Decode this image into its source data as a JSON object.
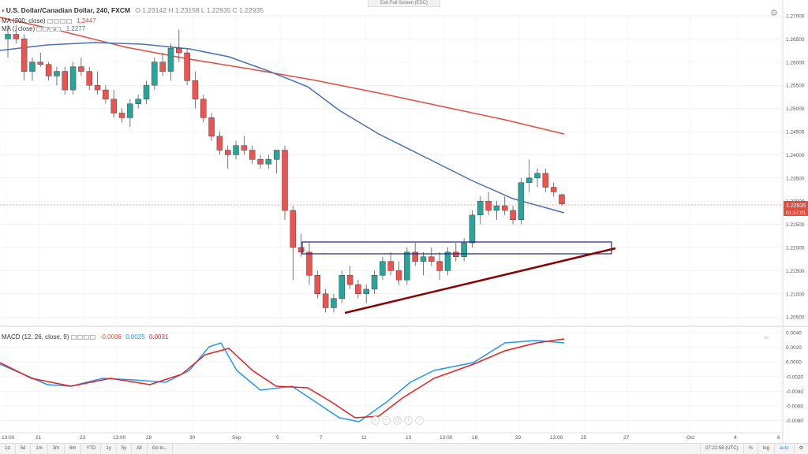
{
  "header": {
    "symbol": "U.S. Dollar/Canadian Dollar, 240, FXCM",
    "ohlc": "O 1.23142  H 1.23158  L 1.22935  C 1.22935",
    "exit_fullscreen": "Exit Full Screen (ESC)"
  },
  "indicators": {
    "ma200_label": "MA (200, close)",
    "ma200_value": "1.2447",
    "ma200_color": "#e74b3c",
    "ma_label": "MA (, close)",
    "ma_value": "1.2277",
    "ma_color": "#4a6fb5",
    "macd_label": "MACD (12, 26, close, 9)",
    "macd_hist": "-0.0006",
    "macd_line": "0.0025",
    "macd_signal": "0.0031",
    "macd_colors": {
      "hist": "#e74b3c",
      "line": "#2196f3",
      "signal": "#e91e1e"
    }
  },
  "price_axis": {
    "ticks": [
      "1.27000",
      "1.26500",
      "1.26000",
      "1.25500",
      "1.25000",
      "1.24500",
      "1.24000",
      "1.23500",
      "1.23000",
      "1.22500",
      "1.22000",
      "1.21500",
      "1.21000",
      "1.20500"
    ],
    "last_price": "1.22935",
    "countdown": "01:37:01"
  },
  "macd_axis": {
    "ticks": [
      "0.0040",
      "0.0020",
      "0.0000",
      "-0.0020",
      "-0.0040",
      "-0.0060",
      "-0.0080"
    ]
  },
  "time_axis": {
    "labels": [
      "13:00",
      "21",
      "23",
      "13:00",
      "28",
      "30",
      "Sep",
      "5",
      "7",
      "11",
      "13",
      "13:00",
      "18",
      "20",
      "13:00",
      "25",
      "27",
      "Oct",
      "4",
      "6"
    ]
  },
  "bottom_bar": {
    "timeframes": [
      "1d",
      "5d",
      "1m",
      "3m",
      "6m",
      "YTD",
      "1y",
      "5y",
      "All",
      "Go to..."
    ],
    "clock": "07:22:58 (UTC)",
    "percent": "%",
    "log": "log",
    "auto": "auto"
  },
  "chart_data": {
    "type": "candlestick",
    "ylim": [
      1.2035,
      1.2735
    ],
    "annotations": [
      "ascending support trendline",
      "horizontal resistance box 1.2190-1.2215"
    ],
    "candles": [
      [
        1.265,
        1.268,
        1.261,
        1.266
      ],
      [
        1.266,
        1.268,
        1.264,
        1.265
      ],
      [
        1.265,
        1.266,
        1.256,
        1.258
      ],
      [
        1.258,
        1.261,
        1.256,
        1.26
      ],
      [
        1.26,
        1.262,
        1.259,
        1.2595
      ],
      [
        1.2595,
        1.26,
        1.256,
        1.257
      ],
      [
        1.257,
        1.259,
        1.255,
        1.258
      ],
      [
        1.258,
        1.259,
        1.253,
        1.254
      ],
      [
        1.254,
        1.26,
        1.253,
        1.259
      ],
      [
        1.259,
        1.261,
        1.257,
        1.258
      ],
      [
        1.258,
        1.259,
        1.254,
        1.255
      ],
      [
        1.255,
        1.258,
        1.253,
        1.254
      ],
      [
        1.254,
        1.255,
        1.251,
        1.252
      ],
      [
        1.252,
        1.254,
        1.248,
        1.249
      ],
      [
        1.249,
        1.25,
        1.247,
        1.248
      ],
      [
        1.248,
        1.252,
        1.246,
        1.251
      ],
      [
        1.251,
        1.253,
        1.25,
        1.252
      ],
      [
        1.252,
        1.256,
        1.251,
        1.255
      ],
      [
        1.255,
        1.261,
        1.254,
        1.26
      ],
      [
        1.26,
        1.262,
        1.257,
        1.258
      ],
      [
        1.258,
        1.264,
        1.256,
        1.263
      ],
      [
        1.263,
        1.267,
        1.26,
        1.262
      ],
      [
        1.262,
        1.263,
        1.255,
        1.256
      ],
      [
        1.256,
        1.258,
        1.25,
        1.252
      ],
      [
        1.252,
        1.253,
        1.247,
        1.248
      ],
      [
        1.248,
        1.249,
        1.243,
        1.244
      ],
      [
        1.244,
        1.245,
        1.24,
        1.241
      ],
      [
        1.241,
        1.242,
        1.237,
        1.24
      ],
      [
        1.24,
        1.243,
        1.239,
        1.242
      ],
      [
        1.242,
        1.244,
        1.24,
        1.241
      ],
      [
        1.241,
        1.242,
        1.238,
        1.239
      ],
      [
        1.239,
        1.24,
        1.237,
        1.238
      ],
      [
        1.238,
        1.24,
        1.237,
        1.239
      ],
      [
        1.239,
        1.241,
        1.236,
        1.241
      ],
      [
        1.241,
        1.242,
        1.226,
        1.228
      ],
      [
        1.228,
        1.229,
        1.213,
        1.22
      ],
      [
        1.22,
        1.223,
        1.218,
        1.219
      ],
      [
        1.219,
        1.221,
        1.212,
        1.214
      ],
      [
        1.214,
        1.215,
        1.209,
        1.21
      ],
      [
        1.21,
        1.211,
        1.206,
        1.207
      ],
      [
        1.207,
        1.21,
        1.206,
        1.209
      ],
      [
        1.209,
        1.215,
        1.208,
        1.214
      ],
      [
        1.214,
        1.216,
        1.211,
        1.212
      ],
      [
        1.212,
        1.213,
        1.209,
        1.21
      ],
      [
        1.21,
        1.212,
        1.208,
        1.211
      ],
      [
        1.211,
        1.215,
        1.21,
        1.214
      ],
      [
        1.214,
        1.218,
        1.213,
        1.217
      ],
      [
        1.217,
        1.219,
        1.214,
        1.215
      ],
      [
        1.215,
        1.217,
        1.212,
        1.213
      ],
      [
        1.213,
        1.22,
        1.212,
        1.219
      ],
      [
        1.219,
        1.221,
        1.216,
        1.217
      ],
      [
        1.217,
        1.219,
        1.214,
        1.218
      ],
      [
        1.218,
        1.22,
        1.216,
        1.217
      ],
      [
        1.217,
        1.219,
        1.213,
        1.215
      ],
      [
        1.215,
        1.22,
        1.214,
        1.219
      ],
      [
        1.219,
        1.221,
        1.217,
        1.218
      ],
      [
        1.218,
        1.222,
        1.217,
        1.221
      ],
      [
        1.221,
        1.228,
        1.22,
        1.227
      ],
      [
        1.227,
        1.231,
        1.225,
        1.23
      ],
      [
        1.23,
        1.232,
        1.227,
        1.228
      ],
      [
        1.228,
        1.23,
        1.226,
        1.229
      ],
      [
        1.229,
        1.231,
        1.227,
        1.228
      ],
      [
        1.228,
        1.229,
        1.225,
        1.226
      ],
      [
        1.226,
        1.235,
        1.225,
        1.234
      ],
      [
        1.234,
        1.239,
        1.232,
        1.235
      ],
      [
        1.235,
        1.237,
        1.233,
        1.236
      ],
      [
        1.236,
        1.237,
        1.232,
        1.233
      ],
      [
        1.233,
        1.234,
        1.231,
        1.232
      ],
      [
        1.2314,
        1.2316,
        1.229,
        1.2294
      ]
    ]
  }
}
